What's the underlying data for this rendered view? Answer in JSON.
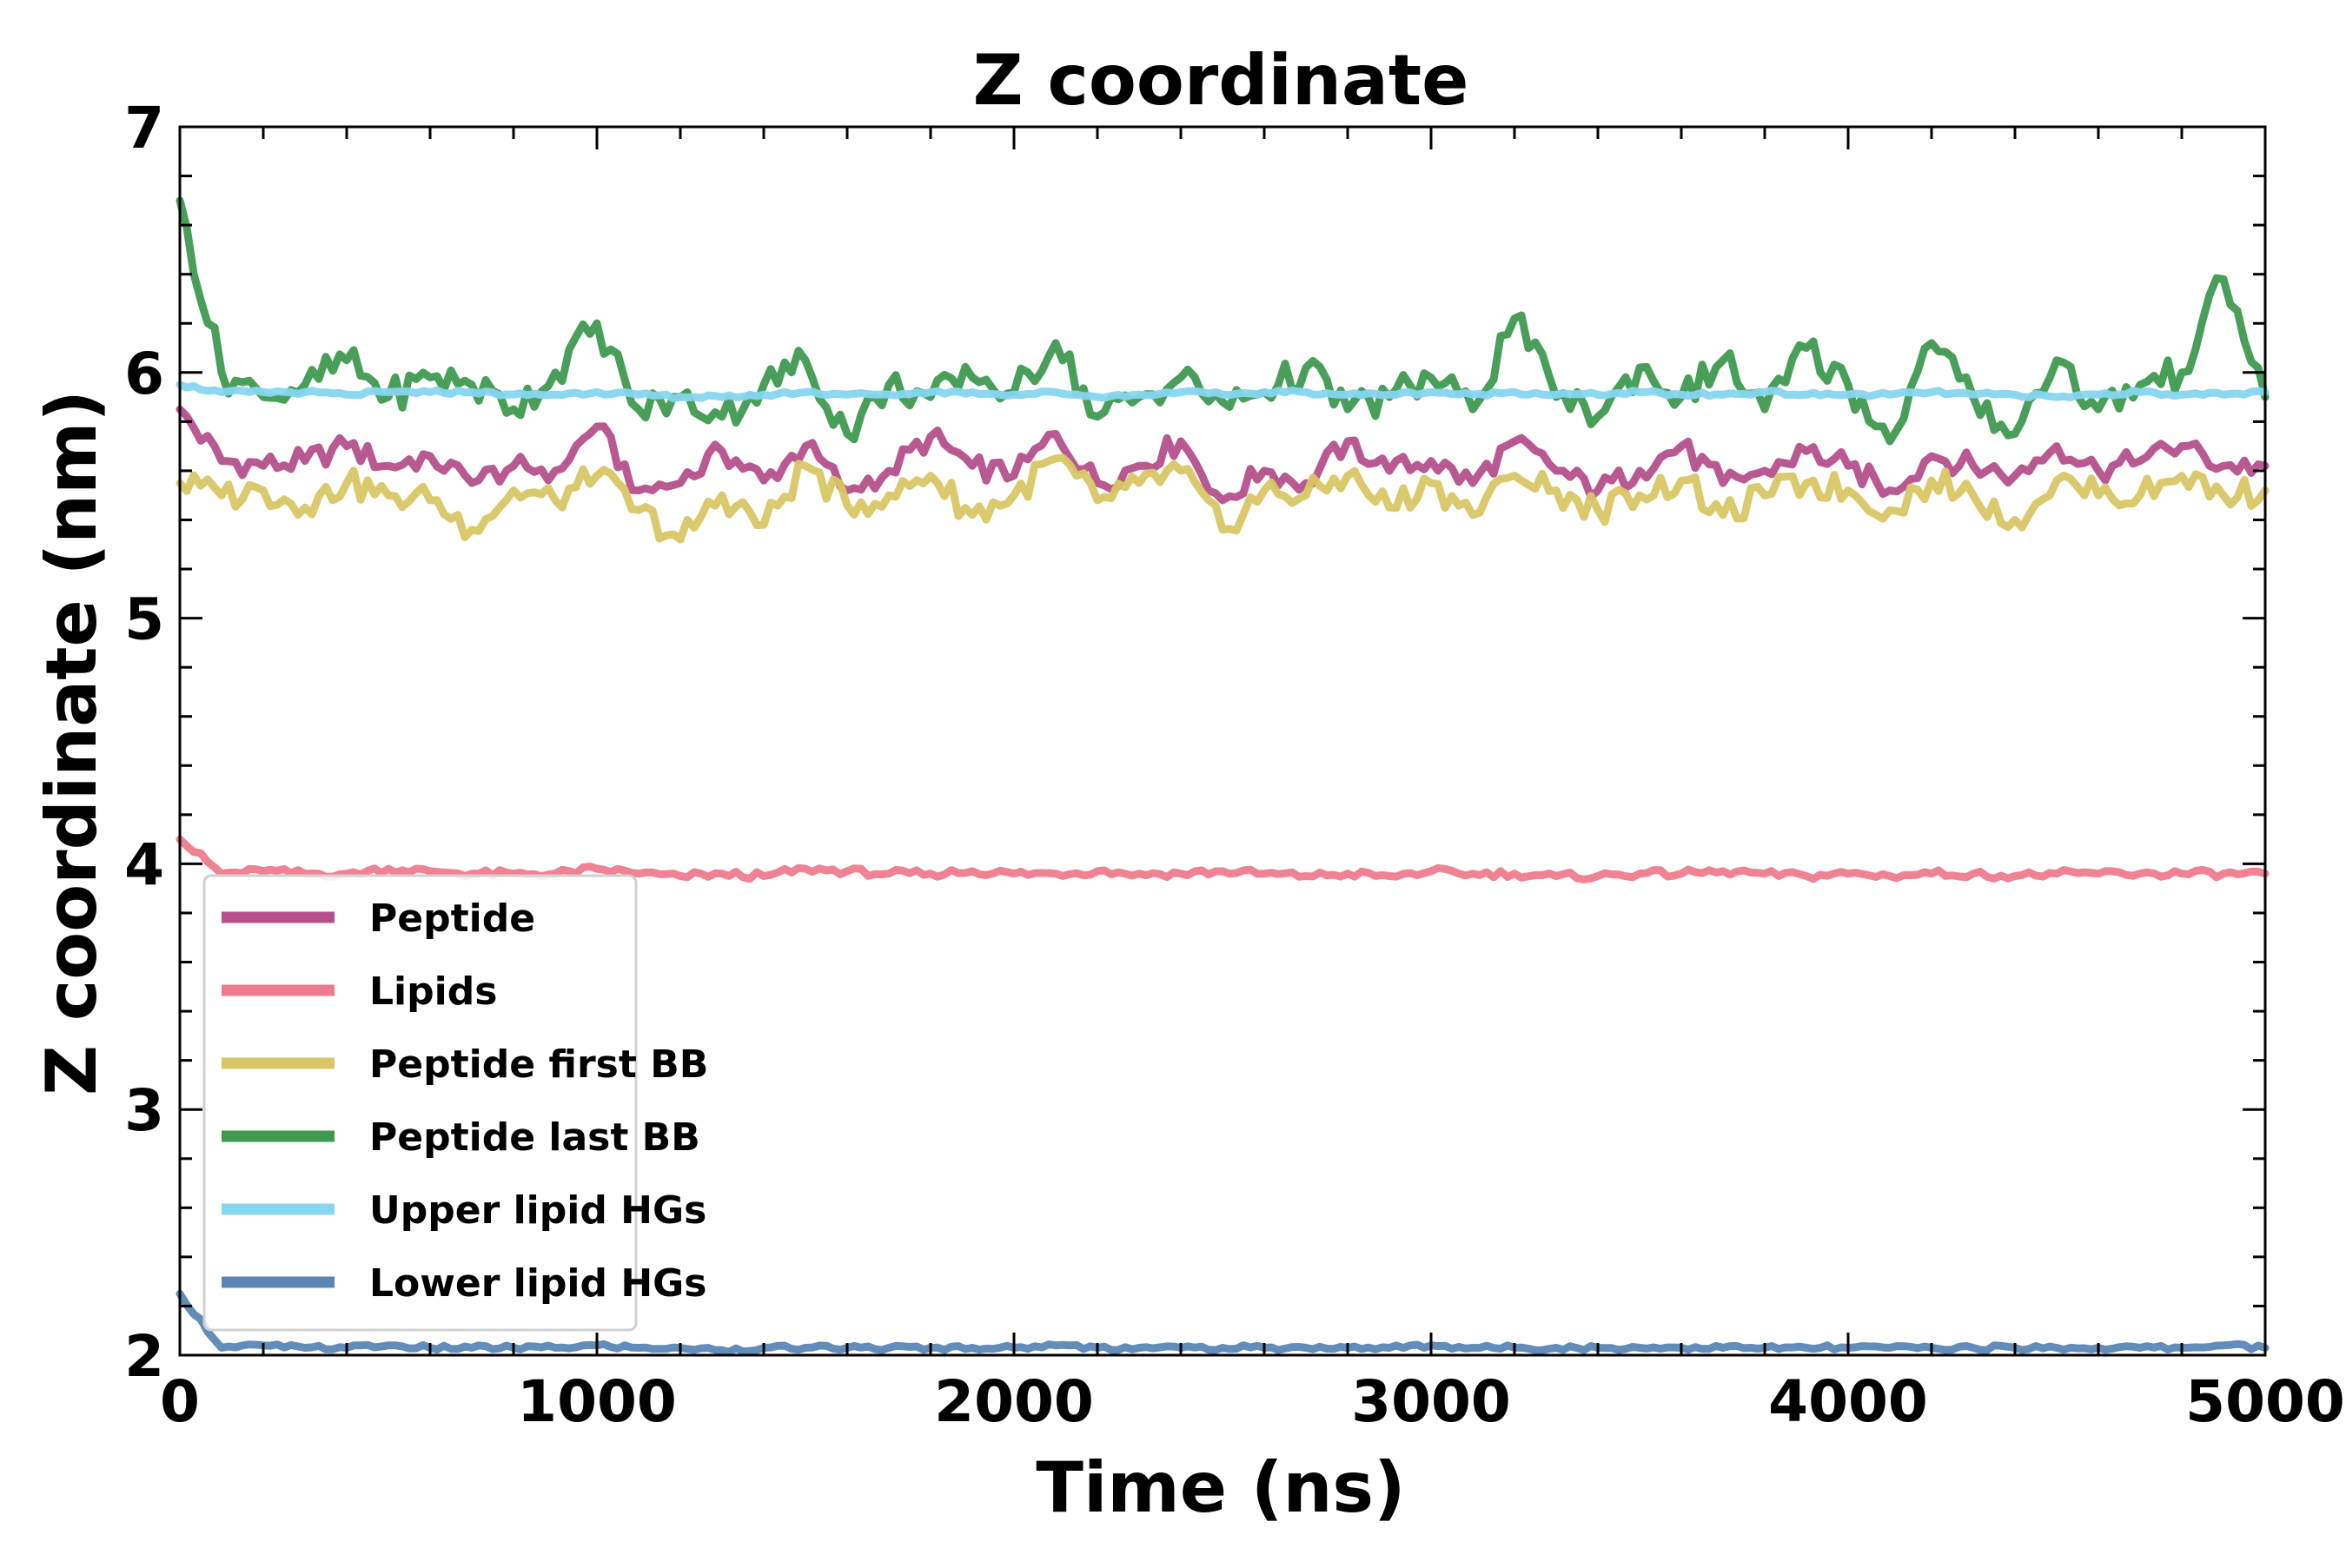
{
  "chart_data": {
    "type": "line",
    "title": "Z coordinate",
    "xlabel": "Time (ns)",
    "ylabel": "Z coordinate (nm)",
    "xlim": [
      0,
      5000
    ],
    "ylim": [
      2,
      7
    ],
    "xticks": [
      "0",
      "1000",
      "2000",
      "3000",
      "4000",
      "5000"
    ],
    "yticks": [
      "2",
      "3",
      "4",
      "5",
      "6",
      "7"
    ],
    "grid": false,
    "legend_position": "lower-left",
    "series": [
      {
        "name": "Peptide",
        "color": "#b5508c",
        "x": [
          0,
          100,
          200,
          300,
          400,
          500,
          600,
          700,
          800,
          900,
          1000,
          1100,
          1200,
          1300,
          1400,
          1500,
          1600,
          1700,
          1800,
          1900,
          2000,
          2100,
          2200,
          2300,
          2400,
          2500,
          2600,
          2700,
          2800,
          2900,
          3000,
          3100,
          3200,
          3300,
          3400,
          3500,
          3600,
          3700,
          3800,
          3900,
          4000,
          4100,
          4200,
          4300,
          4400,
          4500,
          4600,
          4700,
          4800,
          4900,
          5000
        ],
        "y": [
          5.85,
          5.64,
          5.62,
          5.64,
          5.7,
          5.62,
          5.66,
          5.55,
          5.62,
          5.6,
          5.78,
          5.52,
          5.55,
          5.68,
          5.56,
          5.7,
          5.52,
          5.6,
          5.74,
          5.62,
          5.58,
          5.75,
          5.55,
          5.62,
          5.72,
          5.48,
          5.6,
          5.55,
          5.72,
          5.6,
          5.64,
          5.55,
          5.72,
          5.6,
          5.52,
          5.6,
          5.7,
          5.55,
          5.6,
          5.68,
          5.62,
          5.52,
          5.66,
          5.62,
          5.58,
          5.7,
          5.6,
          5.64,
          5.7,
          5.62,
          5.62
        ]
      },
      {
        "name": "Lipids",
        "color": "#ee7b8d",
        "x": [
          0,
          100,
          200,
          300,
          400,
          500,
          600,
          700,
          800,
          900,
          1000,
          1100,
          1200,
          1300,
          1400,
          1500,
          1600,
          1700,
          1800,
          1900,
          2000,
          2100,
          2200,
          2300,
          2400,
          2500,
          2600,
          2700,
          2800,
          2900,
          3000,
          3100,
          3200,
          3300,
          3400,
          3500,
          3600,
          3700,
          3800,
          3900,
          4000,
          4100,
          4200,
          4300,
          4400,
          4500,
          4600,
          4700,
          4800,
          4900,
          5000
        ],
        "y": [
          4.1,
          3.96,
          3.97,
          3.96,
          3.96,
          3.98,
          3.97,
          3.96,
          3.96,
          3.96,
          3.98,
          3.96,
          3.95,
          3.96,
          3.95,
          3.98,
          3.97,
          3.96,
          3.96,
          3.97,
          3.96,
          3.96,
          3.97,
          3.96,
          3.96,
          3.97,
          3.96,
          3.95,
          3.96,
          3.95,
          3.97,
          3.96,
          3.96,
          3.95,
          3.95,
          3.96,
          3.96,
          3.97,
          3.96,
          3.95,
          3.96,
          3.95,
          3.96,
          3.96,
          3.95,
          3.96,
          3.96,
          3.96,
          3.96,
          3.96,
          3.96
        ]
      },
      {
        "name": "Peptide first BB",
        "color": "#d9c665",
        "x": [
          0,
          100,
          200,
          300,
          400,
          500,
          600,
          700,
          800,
          900,
          1000,
          1100,
          1200,
          1300,
          1400,
          1500,
          1600,
          1700,
          1800,
          1900,
          2000,
          2100,
          2200,
          2300,
          2400,
          2500,
          2600,
          2700,
          2800,
          2900,
          3000,
          3100,
          3200,
          3300,
          3400,
          3500,
          3600,
          3700,
          3800,
          3900,
          4000,
          4100,
          4200,
          4300,
          4400,
          4500,
          4600,
          4700,
          4800,
          4900,
          5000
        ],
        "y": [
          5.55,
          5.5,
          5.52,
          5.45,
          5.55,
          5.5,
          5.48,
          5.36,
          5.52,
          5.48,
          5.58,
          5.44,
          5.32,
          5.5,
          5.38,
          5.62,
          5.46,
          5.5,
          5.58,
          5.42,
          5.5,
          5.65,
          5.48,
          5.55,
          5.6,
          5.36,
          5.52,
          5.5,
          5.58,
          5.45,
          5.55,
          5.42,
          5.58,
          5.52,
          5.44,
          5.5,
          5.56,
          5.42,
          5.5,
          5.55,
          5.52,
          5.44,
          5.56,
          5.5,
          5.4,
          5.56,
          5.5,
          5.5,
          5.58,
          5.5,
          5.52
        ]
      },
      {
        "name": "Peptide last BB",
        "color": "#3f9a50",
        "x": [
          0,
          100,
          200,
          300,
          400,
          500,
          600,
          700,
          800,
          900,
          1000,
          1100,
          1200,
          1300,
          1400,
          1500,
          1600,
          1700,
          1800,
          1900,
          2000,
          2100,
          2200,
          2300,
          2400,
          2500,
          2600,
          2700,
          2800,
          2900,
          3000,
          3100,
          3200,
          3300,
          3400,
          3500,
          3600,
          3700,
          3800,
          3900,
          4000,
          4100,
          4200,
          4300,
          4400,
          4500,
          4600,
          4700,
          4800,
          4900,
          5000
        ],
        "y": [
          6.7,
          6.0,
          5.9,
          5.95,
          6.05,
          5.9,
          5.98,
          5.95,
          5.85,
          6.0,
          6.2,
          5.85,
          5.9,
          5.82,
          5.95,
          6.05,
          5.75,
          5.95,
          5.9,
          5.98,
          5.92,
          6.12,
          5.82,
          5.9,
          5.98,
          5.88,
          5.92,
          6.02,
          5.85,
          5.9,
          5.98,
          5.85,
          6.22,
          5.9,
          5.82,
          6.02,
          5.9,
          6.05,
          5.85,
          6.1,
          5.95,
          5.72,
          6.12,
          5.9,
          5.75,
          6.05,
          5.85,
          5.95,
          6.0,
          6.38,
          5.9
        ]
      },
      {
        "name": "Upper lipid HGs",
        "color": "#86d6ef",
        "x": [
          0,
          100,
          200,
          300,
          400,
          500,
          600,
          700,
          800,
          900,
          1000,
          1100,
          1200,
          1300,
          1400,
          1500,
          1600,
          1700,
          1800,
          1900,
          2000,
          2100,
          2200,
          2300,
          2400,
          2500,
          2600,
          2700,
          2800,
          2900,
          3000,
          3100,
          3200,
          3300,
          3400,
          3500,
          3600,
          3700,
          3800,
          3900,
          4000,
          4100,
          4200,
          4300,
          4400,
          4500,
          4600,
          4700,
          4800,
          4900,
          5000
        ],
        "y": [
          5.95,
          5.92,
          5.92,
          5.92,
          5.91,
          5.92,
          5.92,
          5.92,
          5.91,
          5.91,
          5.92,
          5.91,
          5.9,
          5.9,
          5.91,
          5.92,
          5.91,
          5.91,
          5.92,
          5.92,
          5.91,
          5.92,
          5.9,
          5.91,
          5.92,
          5.91,
          5.92,
          5.92,
          5.91,
          5.91,
          5.92,
          5.91,
          5.92,
          5.91,
          5.91,
          5.92,
          5.91,
          5.91,
          5.92,
          5.91,
          5.91,
          5.91,
          5.92,
          5.91,
          5.91,
          5.9,
          5.91,
          5.92,
          5.91,
          5.91,
          5.92
        ]
      },
      {
        "name": "Lower lipid HGs",
        "color": "#5a86b6",
        "x": [
          0,
          100,
          200,
          300,
          400,
          500,
          600,
          700,
          800,
          900,
          1000,
          1100,
          1200,
          1300,
          1400,
          1500,
          1600,
          1700,
          1800,
          1900,
          2000,
          2100,
          2200,
          2300,
          2400,
          2500,
          2600,
          2700,
          2800,
          2900,
          3000,
          3100,
          3200,
          3300,
          3400,
          3500,
          3600,
          3700,
          3800,
          3900,
          4000,
          4100,
          4200,
          4300,
          4400,
          4500,
          4600,
          4700,
          4800,
          4900,
          5000
        ],
        "y": [
          2.25,
          2.03,
          2.04,
          2.03,
          2.03,
          2.04,
          2.03,
          2.03,
          2.03,
          2.03,
          2.04,
          2.03,
          2.03,
          2.02,
          2.03,
          2.03,
          2.03,
          2.03,
          2.03,
          2.03,
          2.03,
          2.04,
          2.03,
          2.03,
          2.03,
          2.03,
          2.03,
          2.03,
          2.03,
          2.03,
          2.04,
          2.03,
          2.03,
          2.03,
          2.03,
          2.03,
          2.03,
          2.03,
          2.03,
          2.03,
          2.03,
          2.03,
          2.03,
          2.03,
          2.03,
          2.03,
          2.03,
          2.03,
          2.03,
          2.04,
          2.03
        ]
      }
    ]
  }
}
